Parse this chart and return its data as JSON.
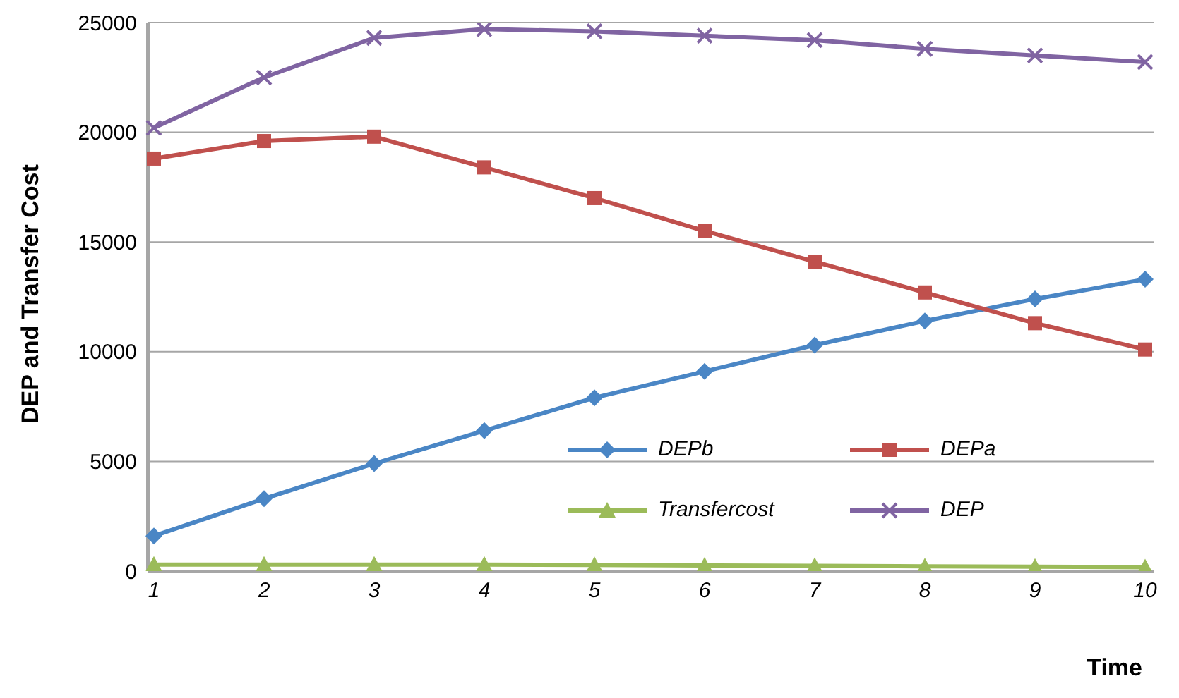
{
  "chart_data": {
    "type": "line",
    "xlabel": "Time",
    "ylabel": "DEP and Transfer Cost",
    "categories": [
      "1",
      "2",
      "3",
      "4",
      "5",
      "6",
      "7",
      "8",
      "9",
      "10"
    ],
    "series": [
      {
        "name": "DEPb",
        "color": "#4a86c5",
        "marker": "diamond",
        "values": [
          1600,
          3300,
          4900,
          6400,
          7900,
          9100,
          10300,
          11400,
          12400,
          13300
        ]
      },
      {
        "name": "DEPa",
        "color": "#c0504d",
        "marker": "square",
        "values": [
          18800,
          19600,
          19800,
          18400,
          17000,
          15500,
          14100,
          12700,
          11300,
          10100
        ]
      },
      {
        "name": "Transfercost",
        "color": "#9bbb59",
        "marker": "triangle",
        "values": [
          300,
          300,
          300,
          300,
          280,
          260,
          240,
          220,
          200,
          180
        ]
      },
      {
        "name": "DEP",
        "color": "#8064a2",
        "marker": "cross",
        "values": [
          20200,
          22500,
          24300,
          24700,
          24600,
          24400,
          24200,
          23800,
          23500,
          23200
        ]
      }
    ],
    "ylim": [
      0,
      25000
    ],
    "yticks": [
      0,
      5000,
      10000,
      15000,
      20000,
      25000
    ],
    "grid": "y",
    "legend": "bottom right"
  }
}
